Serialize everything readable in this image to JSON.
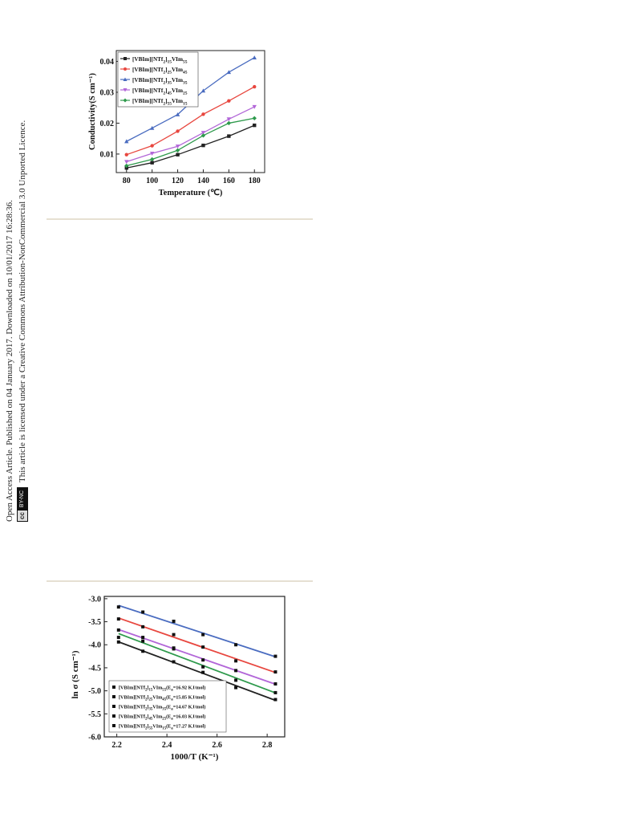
{
  "sidebar": {
    "line1": "Open Access Article. Published on 04 January 2017. Downloaded on 10/01/2017 16:28:36.",
    "line2": "This article is licensed under a Creative Commons Attribution-NonCommercial 3.0 Unported Licence.",
    "badge_cc": "cc",
    "badge_bync": "BY-NC"
  },
  "colors": {
    "black": "#222222",
    "red": "#e8473f",
    "blue": "#4a6cc0",
    "magenta": "#b266d8",
    "green": "#2e9a4c"
  },
  "chart_data": [
    {
      "type": "line",
      "xlabel": "Temperature (℃)",
      "ylabel": "Conductivity(S cm⁻¹)",
      "xlim": [
        72,
        188
      ],
      "ylim": [
        0.004,
        0.0435
      ],
      "xticks": [
        "80",
        "100",
        "120",
        "140",
        "160",
        "180"
      ],
      "yticks": [
        "0.01",
        "0.02",
        "0.03",
        "0.04"
      ],
      "legend_placement": "top-left",
      "x": [
        80,
        100,
        120,
        140,
        160,
        180
      ],
      "series": [
        {
          "name": "[VBIm][NTf₂]₁₅VIm₅₅",
          "color": "black",
          "marker": "square",
          "values": [
            0.0055,
            0.0072,
            0.0098,
            0.0128,
            0.0158,
            0.0193
          ]
        },
        {
          "name": "[VBIm][NTf₂]₂₅VIm₄₅",
          "color": "red",
          "marker": "circle",
          "values": [
            0.0098,
            0.0127,
            0.0174,
            0.0229,
            0.0272,
            0.0318
          ]
        },
        {
          "name": "[VBIm][NTf₂]₃₅VIm₃₅",
          "color": "blue",
          "marker": "triangle-up",
          "values": [
            0.0141,
            0.0184,
            0.0228,
            0.0305,
            0.0365,
            0.0412
          ]
        },
        {
          "name": "[VBIm][NTf₂]₄₅VIm₂₅",
          "color": "magenta",
          "marker": "triangle-down",
          "values": [
            0.0075,
            0.0102,
            0.0125,
            0.0169,
            0.0213,
            0.0253
          ]
        },
        {
          "name": "[VBIm][NTf₂]₅₅VIm₁₅",
          "color": "green",
          "marker": "diamond",
          "values": [
            0.0062,
            0.0083,
            0.0112,
            0.016,
            0.02,
            0.0216
          ]
        }
      ]
    },
    {
      "type": "scatter",
      "xlabel": "1000/T (K⁻¹)",
      "ylabel": "ln σ (S cm⁻¹)",
      "xlim": [
        2.15,
        2.87
      ],
      "ylim": [
        -6.0,
        -2.95
      ],
      "xticks": [
        "2.2",
        "2.4",
        "2.6",
        "2.8"
      ],
      "yticks": [
        "-3.0",
        "-3.5",
        "-4.0",
        "-4.5",
        "-5.0",
        "-5.5",
        "-6.0"
      ],
      "legend_placement": "bottom-left",
      "x": [
        2.207,
        2.304,
        2.427,
        2.544,
        2.675,
        2.833
      ],
      "series": [
        {
          "name": "[VBIm][NTf₂]₁₅VIm₅₅(Eₐ=16.92 KJ/mol)",
          "color": "black",
          "values": [
            -3.94,
            -4.14,
            -4.37,
            -4.6,
            -4.93,
            -5.19
          ]
        },
        {
          "name": "[VBIm][NTf₂]₂₅VIm₄₅(Eₐ=15.85 KJ/mol)",
          "color": "red",
          "values": [
            -3.44,
            -3.61,
            -3.78,
            -4.05,
            -4.35,
            -4.59
          ]
        },
        {
          "name": "[VBIm][NTf₂]₃₅VIm₃₅(Eₐ=14.67 KJ/mol)",
          "color": "blue",
          "values": [
            -3.18,
            -3.29,
            -3.49,
            -3.78,
            -4.0,
            -4.25
          ]
        },
        {
          "name": "[VBIm][NTf₂]₄₅VIm₂₅(Eₐ=16.03 KJ/mol)",
          "color": "magenta",
          "values": [
            -3.68,
            -3.84,
            -4.07,
            -4.33,
            -4.56,
            -4.85
          ]
        },
        {
          "name": "[VBIm][NTf₂]₅₅VIm₁₅(Eₐ=17.27 KJ/mol)",
          "color": "green",
          "values": [
            -3.84,
            -3.92,
            -4.09,
            -4.48,
            -4.77,
            -5.04
          ]
        }
      ]
    }
  ]
}
